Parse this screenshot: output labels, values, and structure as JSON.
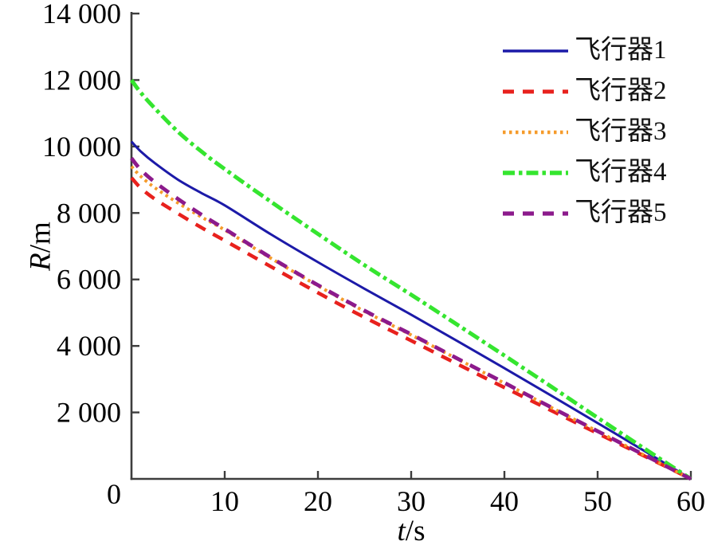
{
  "figure": {
    "background": "#ffffff",
    "axis_color": "#3d3d3d",
    "text_color": "#000000"
  },
  "axes": {
    "y": {
      "var": "R",
      "unit": "/m",
      "min": 0,
      "max": 14000,
      "tick_values": [
        2000,
        4000,
        6000,
        8000,
        10000,
        12000,
        14000
      ],
      "tick_labels": [
        "2 000",
        "4 000",
        "6 000",
        "8 000",
        "10 000",
        "12 000",
        "14 000"
      ]
    },
    "x": {
      "var": "t",
      "unit": "/s",
      "min": 0,
      "max": 60,
      "tick_values": [
        10,
        20,
        30,
        40,
        50,
        60
      ],
      "tick_labels": [
        "10",
        "20",
        "30",
        "40",
        "50",
        "60"
      ]
    },
    "origin_label": "0"
  },
  "legend": {
    "position": "upper-right",
    "items": [
      {
        "label": "飞行器1",
        "color": "#1c1aa8",
        "dash": "",
        "width": 3
      },
      {
        "label": "飞行器2",
        "color": "#e8211d",
        "dash": "14 11",
        "width": 4.5
      },
      {
        "label": "飞行器3",
        "color": "#f59b2b",
        "dash": "3.5 4.5",
        "width": 4
      },
      {
        "label": "飞行器4",
        "color": "#35e52f",
        "dash": "15 5 4.5 5",
        "width": 5
      },
      {
        "label": "飞行器5",
        "color": "#8c1a8c",
        "dash": "14 11",
        "width": 4.8
      }
    ]
  },
  "chart_data": {
    "type": "line",
    "title": "",
    "xlabel": "t/s",
    "ylabel": "R/m",
    "xlim": [
      0,
      60
    ],
    "ylim": [
      0,
      14000
    ],
    "x_ticks": [
      0,
      10,
      20,
      30,
      40,
      50,
      60
    ],
    "y_ticks": [
      0,
      2000,
      4000,
      6000,
      8000,
      10000,
      12000,
      14000
    ],
    "grid": false,
    "legend_position": "upper right",
    "series": [
      {
        "name": "飞行器1",
        "color": "#1c1aa8",
        "style": "solid",
        "points": [
          [
            0,
            10150
          ],
          [
            1,
            9850
          ],
          [
            2.5,
            9500
          ],
          [
            5,
            9000
          ],
          [
            7.5,
            8600
          ],
          [
            10,
            8230
          ],
          [
            15,
            7350
          ],
          [
            20,
            6520
          ],
          [
            25,
            5720
          ],
          [
            30,
            4940
          ],
          [
            35,
            4140
          ],
          [
            40,
            3330
          ],
          [
            45,
            2510
          ],
          [
            50,
            1680
          ],
          [
            55,
            845
          ],
          [
            60,
            0
          ]
        ]
      },
      {
        "name": "飞行器2",
        "color": "#e8211d",
        "style": "dashed",
        "points": [
          [
            0,
            9060
          ],
          [
            1,
            8750
          ],
          [
            2.5,
            8420
          ],
          [
            5,
            7980
          ],
          [
            7.5,
            7560
          ],
          [
            10,
            7170
          ],
          [
            15,
            6380
          ],
          [
            20,
            5600
          ],
          [
            25,
            4860
          ],
          [
            30,
            4160
          ],
          [
            35,
            3450
          ],
          [
            40,
            2750
          ],
          [
            45,
            2060
          ],
          [
            50,
            1370
          ],
          [
            55,
            690
          ],
          [
            60,
            0
          ]
        ]
      },
      {
        "name": "飞行器3",
        "color": "#f59b2b",
        "style": "dotted",
        "points": [
          [
            0,
            9400
          ],
          [
            1,
            9100
          ],
          [
            2.5,
            8760
          ],
          [
            5,
            8300
          ],
          [
            7.5,
            7880
          ],
          [
            10,
            7490
          ],
          [
            15,
            6630
          ],
          [
            20,
            5810
          ],
          [
            25,
            5040
          ],
          [
            30,
            4330
          ],
          [
            35,
            3600
          ],
          [
            40,
            2880
          ],
          [
            45,
            2150
          ],
          [
            50,
            1430
          ],
          [
            55,
            715
          ],
          [
            60,
            0
          ]
        ]
      },
      {
        "name": "飞行器4",
        "color": "#35e52f",
        "style": "dashdot",
        "points": [
          [
            0,
            12000
          ],
          [
            1,
            11620
          ],
          [
            2.5,
            11150
          ],
          [
            5,
            10440
          ],
          [
            7.5,
            9850
          ],
          [
            10,
            9320
          ],
          [
            15,
            8330
          ],
          [
            20,
            7370
          ],
          [
            25,
            6430
          ],
          [
            30,
            5540
          ],
          [
            35,
            4630
          ],
          [
            40,
            3710
          ],
          [
            45,
            2780
          ],
          [
            50,
            1840
          ],
          [
            55,
            915
          ],
          [
            60,
            0
          ]
        ]
      },
      {
        "name": "飞行器5",
        "color": "#8c1a8c",
        "style": "dashed",
        "points": [
          [
            0,
            9650
          ],
          [
            1,
            9300
          ],
          [
            2.5,
            8930
          ],
          [
            5,
            8420
          ],
          [
            7.5,
            7950
          ],
          [
            10,
            7520
          ],
          [
            15,
            6650
          ],
          [
            20,
            5830
          ],
          [
            25,
            5060
          ],
          [
            30,
            4350
          ],
          [
            35,
            3615
          ],
          [
            40,
            2890
          ],
          [
            45,
            2155
          ],
          [
            50,
            1435
          ],
          [
            55,
            718
          ],
          [
            60,
            0
          ]
        ]
      }
    ]
  }
}
